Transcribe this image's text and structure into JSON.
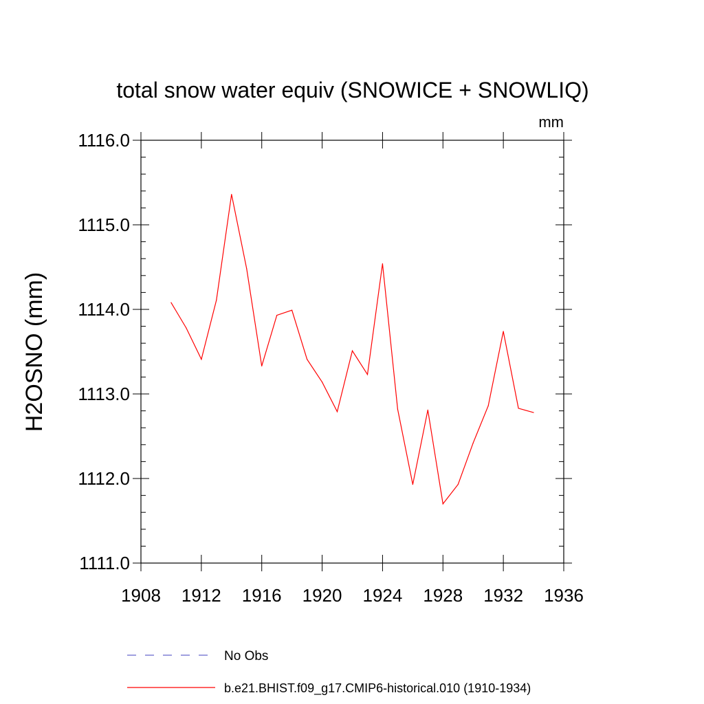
{
  "chart_data": {
    "type": "line",
    "title": "total snow water equiv (SNOWICE + SNOWLIQ)",
    "units_label": "mm",
    "ylabel": "H2OSNO  (mm)",
    "xlabel": "",
    "xlim": [
      1908,
      1936
    ],
    "ylim": [
      1111.0,
      1116.0
    ],
    "x_ticks": [
      1908,
      1912,
      1916,
      1920,
      1924,
      1928,
      1932,
      1936
    ],
    "x_tick_labels": [
      "1908",
      "1912",
      "1916",
      "1920",
      "1924",
      "1928",
      "1932",
      "1936"
    ],
    "y_ticks": [
      1111.0,
      1112.0,
      1113.0,
      1114.0,
      1115.0,
      1116.0
    ],
    "y_tick_labels": [
      "1111.0",
      "1112.0",
      "1113.0",
      "1114.0",
      "1115.0",
      "1116.0"
    ],
    "grid": false,
    "legend_position": "bottom",
    "series": [
      {
        "name": "b.e21.BHIST.f09_g17.CMIP6-historical.010 (1910-1934)",
        "color": "#ff0000",
        "style": "solid",
        "x": [
          1910,
          1911,
          1912,
          1913,
          1914,
          1915,
          1916,
          1917,
          1918,
          1919,
          1920,
          1921,
          1922,
          1923,
          1924,
          1925,
          1926,
          1927,
          1928,
          1929,
          1930,
          1931,
          1932,
          1933,
          1934
        ],
        "values": [
          1114.08,
          1113.78,
          1113.41,
          1114.11,
          1115.36,
          1114.48,
          1113.33,
          1113.93,
          1113.99,
          1113.41,
          1113.14,
          1112.79,
          1113.51,
          1113.23,
          1114.54,
          1112.82,
          1111.93,
          1112.81,
          1111.7,
          1111.93,
          1112.42,
          1112.86,
          1113.74,
          1112.83,
          1112.78
        ]
      }
    ],
    "legend": [
      {
        "label": "No Obs",
        "color": "#6666cc",
        "style": "dashed"
      },
      {
        "label": "b.e21.BHIST.f09_g17.CMIP6-historical.010 (1910-1934)",
        "color": "#ff0000",
        "style": "solid"
      }
    ]
  }
}
